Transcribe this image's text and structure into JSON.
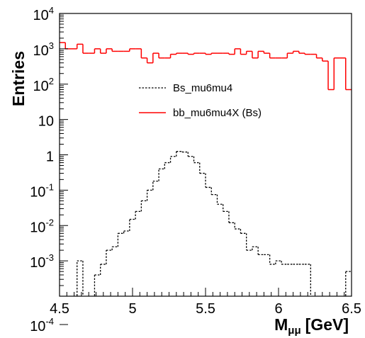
{
  "chart_data": {
    "type": "histogram",
    "xlabel": "M",
    "xlabel_subscript": "μμ",
    "xlabel_unit": "[GeV]",
    "ylabel": "Entries",
    "xlim": [
      4.5,
      6.5
    ],
    "ylim": [
      0.0001,
      10000
    ],
    "yscale": "log",
    "bin_width": 0.04,
    "x_ticks": [
      "4.5",
      "5",
      "5.5",
      "6",
      "6.5"
    ],
    "y_ticks": [
      {
        "value": 0.0001,
        "base": "10",
        "exp": "-4"
      },
      {
        "value": 0.001,
        "base": "10",
        "exp": "-3"
      },
      {
        "value": 0.01,
        "base": "10",
        "exp": "-2"
      },
      {
        "value": 0.1,
        "base": "10",
        "exp": "-1"
      },
      {
        "value": 1,
        "base": "1",
        "exp": ""
      },
      {
        "value": 10,
        "base": "10",
        "exp": ""
      },
      {
        "value": 100,
        "base": "10",
        "exp": "2"
      },
      {
        "value": 1000,
        "base": "10",
        "exp": "3"
      },
      {
        "value": 10000,
        "base": "10",
        "exp": "4"
      }
    ],
    "legend_position": "upper-center",
    "series": [
      {
        "name": "Bs_mu6mu4",
        "style": "dashed",
        "color": "#000000",
        "bin_lo": [
          4.5,
          4.54,
          4.58,
          4.62,
          4.66,
          4.7,
          4.74,
          4.78,
          4.82,
          4.86,
          4.9,
          4.94,
          4.98,
          5.02,
          5.06,
          5.1,
          5.14,
          5.18,
          5.22,
          5.26,
          5.3,
          5.34,
          5.38,
          5.42,
          5.46,
          5.5,
          5.54,
          5.58,
          5.62,
          5.66,
          5.7,
          5.74,
          5.78,
          5.82,
          5.86,
          5.9,
          5.94,
          5.98,
          6.02,
          6.06,
          6.1,
          6.14,
          6.18,
          6.22,
          6.26,
          6.3,
          6.34,
          6.38,
          6.42,
          6.46
        ],
        "values": [
          0,
          0,
          0,
          0.001,
          0,
          0,
          0.0004,
          0.0008,
          0.002,
          0.0025,
          0.006,
          0.007,
          0.015,
          0.025,
          0.05,
          0.1,
          0.18,
          0.4,
          0.6,
          0.9,
          1.25,
          1.2,
          0.9,
          0.6,
          0.3,
          0.12,
          0.075,
          0.04,
          0.025,
          0.012,
          0.008,
          0.006,
          0.002,
          0.0025,
          0.0015,
          0.0015,
          0.0008,
          0.001,
          0.0008,
          0.0008,
          0.0008,
          0.0008,
          0.0008,
          0,
          0,
          0,
          0,
          0,
          0,
          0.0005
        ]
      },
      {
        "name": "bb_mu6mu4X (Bs)",
        "style": "solid",
        "color": "#ff0000",
        "bin_lo": [
          4.5,
          4.54,
          4.58,
          4.62,
          4.66,
          4.7,
          4.74,
          4.78,
          4.82,
          4.86,
          4.9,
          4.94,
          4.98,
          5.02,
          5.06,
          5.1,
          5.14,
          5.18,
          5.22,
          5.26,
          5.3,
          5.34,
          5.38,
          5.42,
          5.46,
          5.5,
          5.54,
          5.58,
          5.62,
          5.66,
          5.7,
          5.74,
          5.78,
          5.82,
          5.86,
          5.9,
          5.94,
          5.98,
          6.02,
          6.06,
          6.1,
          6.14,
          6.18,
          6.22,
          6.26,
          6.3,
          6.34,
          6.38,
          6.42,
          6.46
        ],
        "values": [
          1500,
          1000,
          1000,
          1350,
          750,
          750,
          1000,
          750,
          1000,
          850,
          850,
          850,
          1000,
          1000,
          550,
          400,
          750,
          550,
          550,
          700,
          750,
          750,
          700,
          750,
          750,
          700,
          750,
          750,
          750,
          700,
          1000,
          700,
          850,
          550,
          850,
          750,
          550,
          550,
          550,
          750,
          850,
          750,
          700,
          700,
          550,
          450,
          70,
          550,
          550,
          70
        ]
      }
    ]
  }
}
